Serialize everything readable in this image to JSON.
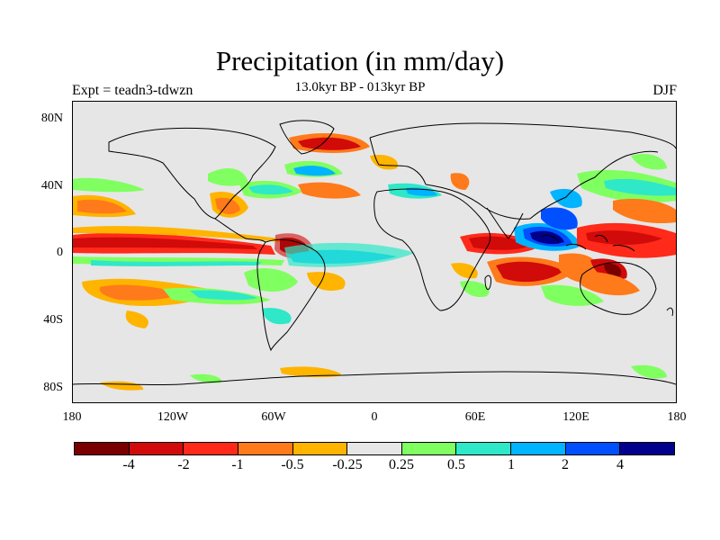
{
  "title": "Precipitation (in mm/day)",
  "subtitle": "13.0kyr BP - 013kyr BP",
  "left_label": "Expt = teadn3-tdwzn",
  "right_label": "DJF",
  "y_ticks": [
    "80N",
    "40N",
    "0",
    "40S",
    "80S"
  ],
  "x_ticks": [
    "180",
    "120W",
    "60W",
    "0",
    "60E",
    "120E",
    "180"
  ],
  "colorbar": {
    "colors": [
      "#7a0000",
      "#d10a0a",
      "#ff2a1a",
      "#ff7a1a",
      "#ffb400",
      "#e6e6e6",
      "#80ff60",
      "#2ee8c8",
      "#00b4ff",
      "#0050ff",
      "#00008c"
    ],
    "labels": [
      "-4",
      "-2",
      "-1",
      "-0.5",
      "-0.25",
      "0.25",
      "0.5",
      "1",
      "2",
      "4"
    ]
  },
  "background_color": "#e6e6e6"
}
